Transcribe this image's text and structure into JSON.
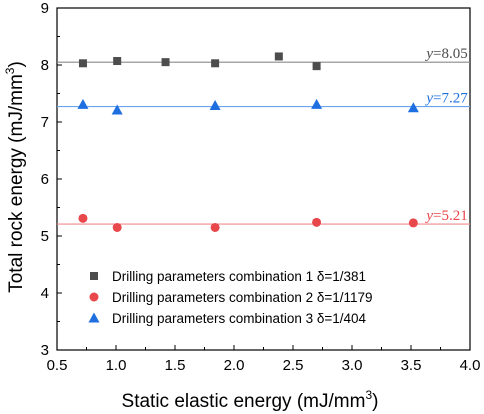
{
  "chart_data": {
    "type": "scatter",
    "xlabel": "Static elastic energy (mJ/mm",
    "xlabel_sup": "3",
    "xlabel_end": ")",
    "ylabel": "Total rock energy (mJ/mm",
    "ylabel_sup": "3",
    "ylabel_end": ")",
    "xlim": [
      0.5,
      4.0
    ],
    "ylim": [
      3,
      9
    ],
    "xticks": [
      "0.5",
      "1.0",
      "1.5",
      "2.0",
      "2.5",
      "3.0",
      "3.5",
      "4.0"
    ],
    "xtick_values": [
      0.5,
      1.0,
      1.5,
      2.0,
      2.5,
      3.0,
      3.5,
      4.0
    ],
    "yticks": [
      "3",
      "4",
      "5",
      "6",
      "7",
      "8",
      "9"
    ],
    "ytick_values": [
      3,
      4,
      5,
      6,
      7,
      8,
      9
    ],
    "grid": false,
    "legend_position": "bottom-right",
    "series": [
      {
        "name": "Drilling parameters combination 1 δ=1/381",
        "marker": "square",
        "color": "#4d4d4d",
        "line_color": "#8a8a8a",
        "fit_value": 8.05,
        "fit_label_var": "y",
        "fit_label_eq": "=8.05",
        "points": [
          [
            0.72,
            8.03
          ],
          [
            1.01,
            8.07
          ],
          [
            1.42,
            8.05
          ],
          [
            1.84,
            8.03
          ],
          [
            2.38,
            8.15
          ],
          [
            2.7,
            7.98
          ]
        ]
      },
      {
        "name": "Drilling parameters combination 2 δ=1/1179",
        "marker": "circle",
        "color": "#e8474b",
        "line_color": "#f08a8c",
        "fit_value": 5.21,
        "fit_label_var": "y",
        "fit_label_eq": "=5.21",
        "points": [
          [
            0.72,
            5.31
          ],
          [
            1.01,
            5.15
          ],
          [
            1.84,
            5.15
          ],
          [
            2.7,
            5.24
          ],
          [
            3.52,
            5.23
          ]
        ]
      },
      {
        "name": "Drilling parameters combination 3 δ=1/404",
        "marker": "triangle",
        "color": "#1f6fe0",
        "line_color": "#6aa3ee",
        "fit_value": 7.27,
        "fit_label_var": "y",
        "fit_label_eq": "=7.27",
        "points": [
          [
            0.72,
            7.31
          ],
          [
            1.01,
            7.21
          ],
          [
            1.84,
            7.29
          ],
          [
            2.7,
            7.31
          ],
          [
            3.52,
            7.25
          ]
        ]
      }
    ]
  }
}
